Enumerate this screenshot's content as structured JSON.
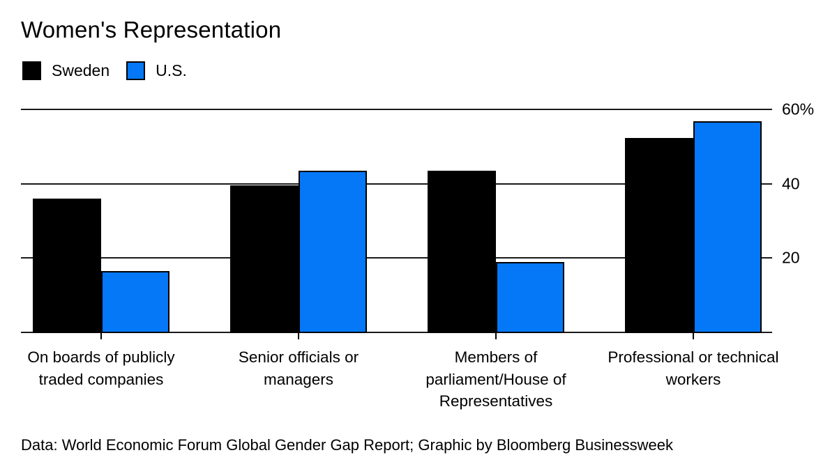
{
  "title": "Women's Representation",
  "footer": "Data: World Economic Forum Global Gender Gap Report; Graphic by Bloomberg Businessweek",
  "colors": {
    "sweden": "#000000",
    "us": "#0478f7",
    "gridline": "#1a1a1a",
    "background": "#ffffff",
    "text": "#000000",
    "bar_outline": "#000000"
  },
  "legend": [
    {
      "label": "Sweden",
      "color": "#000000",
      "bordered": false
    },
    {
      "label": "U.S.",
      "color": "#0478f7",
      "bordered": true
    }
  ],
  "chart_data": {
    "type": "bar",
    "title": "Women's Representation",
    "categories": [
      "On boards of publicly traded companies",
      "Senior officials or managers",
      "Members of parliament/House of Representatives",
      "Professional or technical workers"
    ],
    "category_lines": [
      [
        "On boards of publicly",
        "traded companies"
      ],
      [
        "Senior officials or",
        "managers"
      ],
      [
        "Members of",
        "parliament/House of",
        "Representatives"
      ],
      [
        "Professional or technical",
        "workers"
      ]
    ],
    "series": [
      {
        "name": "Sweden",
        "color": "#000000",
        "values": [
          36,
          39.5,
          43.5,
          52.3
        ]
      },
      {
        "name": "U.S.",
        "color": "#0478f7",
        "values": [
          16.5,
          43.5,
          19,
          56.8
        ]
      }
    ],
    "xlabel": "",
    "ylabel": "",
    "ylim": [
      0,
      60
    ],
    "yticks": [
      {
        "value": 60,
        "label": "60%"
      },
      {
        "value": 40,
        "label": "40"
      },
      {
        "value": 20,
        "label": "20"
      }
    ],
    "grid": "horizontal",
    "legend_position": "top-left",
    "axis_label_side": "right"
  }
}
